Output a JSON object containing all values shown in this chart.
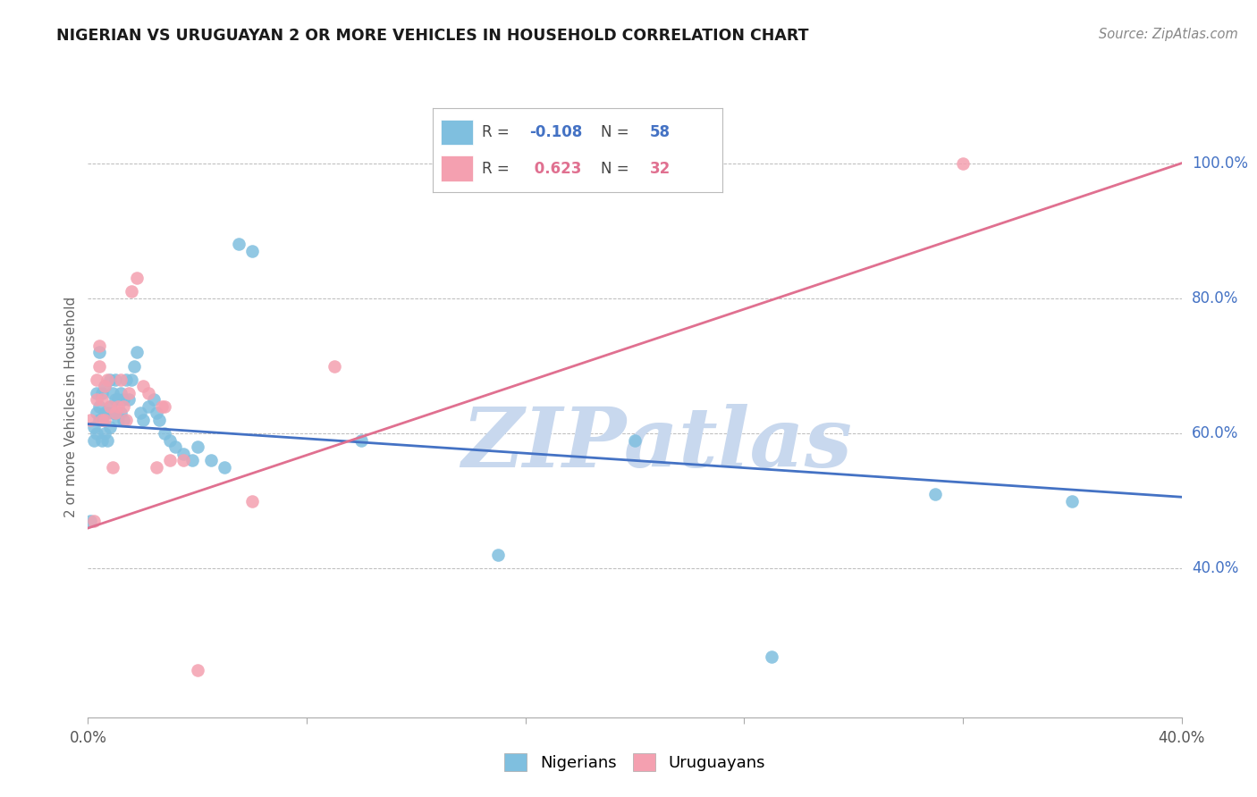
{
  "title": "NIGERIAN VS URUGUAYAN 2 OR MORE VEHICLES IN HOUSEHOLD CORRELATION CHART",
  "source": "Source: ZipAtlas.com",
  "ylabel": "2 or more Vehicles in Household",
  "xlim": [
    0.0,
    0.4
  ],
  "ylim": [
    0.18,
    1.1
  ],
  "xtick_positions": [
    0.0,
    0.08,
    0.16,
    0.24,
    0.32,
    0.4
  ],
  "xtick_labels": [
    "0.0%",
    "",
    "",
    "",
    "",
    "40.0%"
  ],
  "ytick_right_positions": [
    0.4,
    0.6,
    0.8,
    1.0
  ],
  "ytick_right_labels": [
    "40.0%",
    "60.0%",
    "80.0%",
    "100.0%"
  ],
  "nigerian_color": "#7fbfdf",
  "uruguayan_color": "#f4a0b0",
  "nigerian_line_color": "#4472c4",
  "uruguayan_line_color": "#e07090",
  "R_nigerian": -0.108,
  "N_nigerian": 58,
  "R_uruguayan": 0.623,
  "N_uruguayan": 32,
  "watermark": "ZIPatlas",
  "watermark_color": "#c8d8ee",
  "background_color": "#ffffff",
  "grid_color": "#bbbbbb",
  "nigerian_x": [
    0.001,
    0.002,
    0.002,
    0.003,
    0.003,
    0.003,
    0.004,
    0.004,
    0.004,
    0.005,
    0.005,
    0.005,
    0.006,
    0.006,
    0.006,
    0.007,
    0.007,
    0.008,
    0.008,
    0.008,
    0.009,
    0.009,
    0.01,
    0.01,
    0.01,
    0.011,
    0.011,
    0.012,
    0.012,
    0.013,
    0.013,
    0.014,
    0.015,
    0.016,
    0.017,
    0.018,
    0.019,
    0.02,
    0.022,
    0.024,
    0.025,
    0.026,
    0.028,
    0.03,
    0.032,
    0.035,
    0.038,
    0.04,
    0.045,
    0.05,
    0.055,
    0.06,
    0.1,
    0.15,
    0.2,
    0.25,
    0.31,
    0.36
  ],
  "nigerian_y": [
    0.47,
    0.59,
    0.61,
    0.6,
    0.63,
    0.66,
    0.62,
    0.64,
    0.72,
    0.59,
    0.62,
    0.66,
    0.6,
    0.63,
    0.67,
    0.59,
    0.63,
    0.61,
    0.64,
    0.68,
    0.63,
    0.66,
    0.63,
    0.65,
    0.68,
    0.62,
    0.65,
    0.63,
    0.66,
    0.62,
    0.65,
    0.68,
    0.65,
    0.68,
    0.7,
    0.72,
    0.63,
    0.62,
    0.64,
    0.65,
    0.63,
    0.62,
    0.6,
    0.59,
    0.58,
    0.57,
    0.56,
    0.58,
    0.56,
    0.55,
    0.88,
    0.87,
    0.59,
    0.42,
    0.59,
    0.27,
    0.51,
    0.5
  ],
  "uruguayan_x": [
    0.001,
    0.002,
    0.003,
    0.003,
    0.004,
    0.004,
    0.005,
    0.005,
    0.006,
    0.006,
    0.007,
    0.008,
    0.009,
    0.01,
    0.011,
    0.012,
    0.013,
    0.014,
    0.015,
    0.016,
    0.018,
    0.02,
    0.022,
    0.025,
    0.027,
    0.028,
    0.03,
    0.035,
    0.04,
    0.06,
    0.09,
    0.32
  ],
  "uruguayan_y": [
    0.62,
    0.47,
    0.65,
    0.68,
    0.7,
    0.73,
    0.65,
    0.62,
    0.62,
    0.67,
    0.68,
    0.64,
    0.55,
    0.63,
    0.64,
    0.68,
    0.64,
    0.62,
    0.66,
    0.81,
    0.83,
    0.67,
    0.66,
    0.55,
    0.64,
    0.64,
    0.56,
    0.56,
    0.25,
    0.5,
    0.7,
    1.0
  ],
  "nig_line_x0": 0.0,
  "nig_line_y0": 0.614,
  "nig_line_x1": 0.4,
  "nig_line_y1": 0.506,
  "uru_line_x0": 0.0,
  "uru_line_y0": 0.46,
  "uru_line_x1": 0.4,
  "uru_line_y1": 1.0
}
